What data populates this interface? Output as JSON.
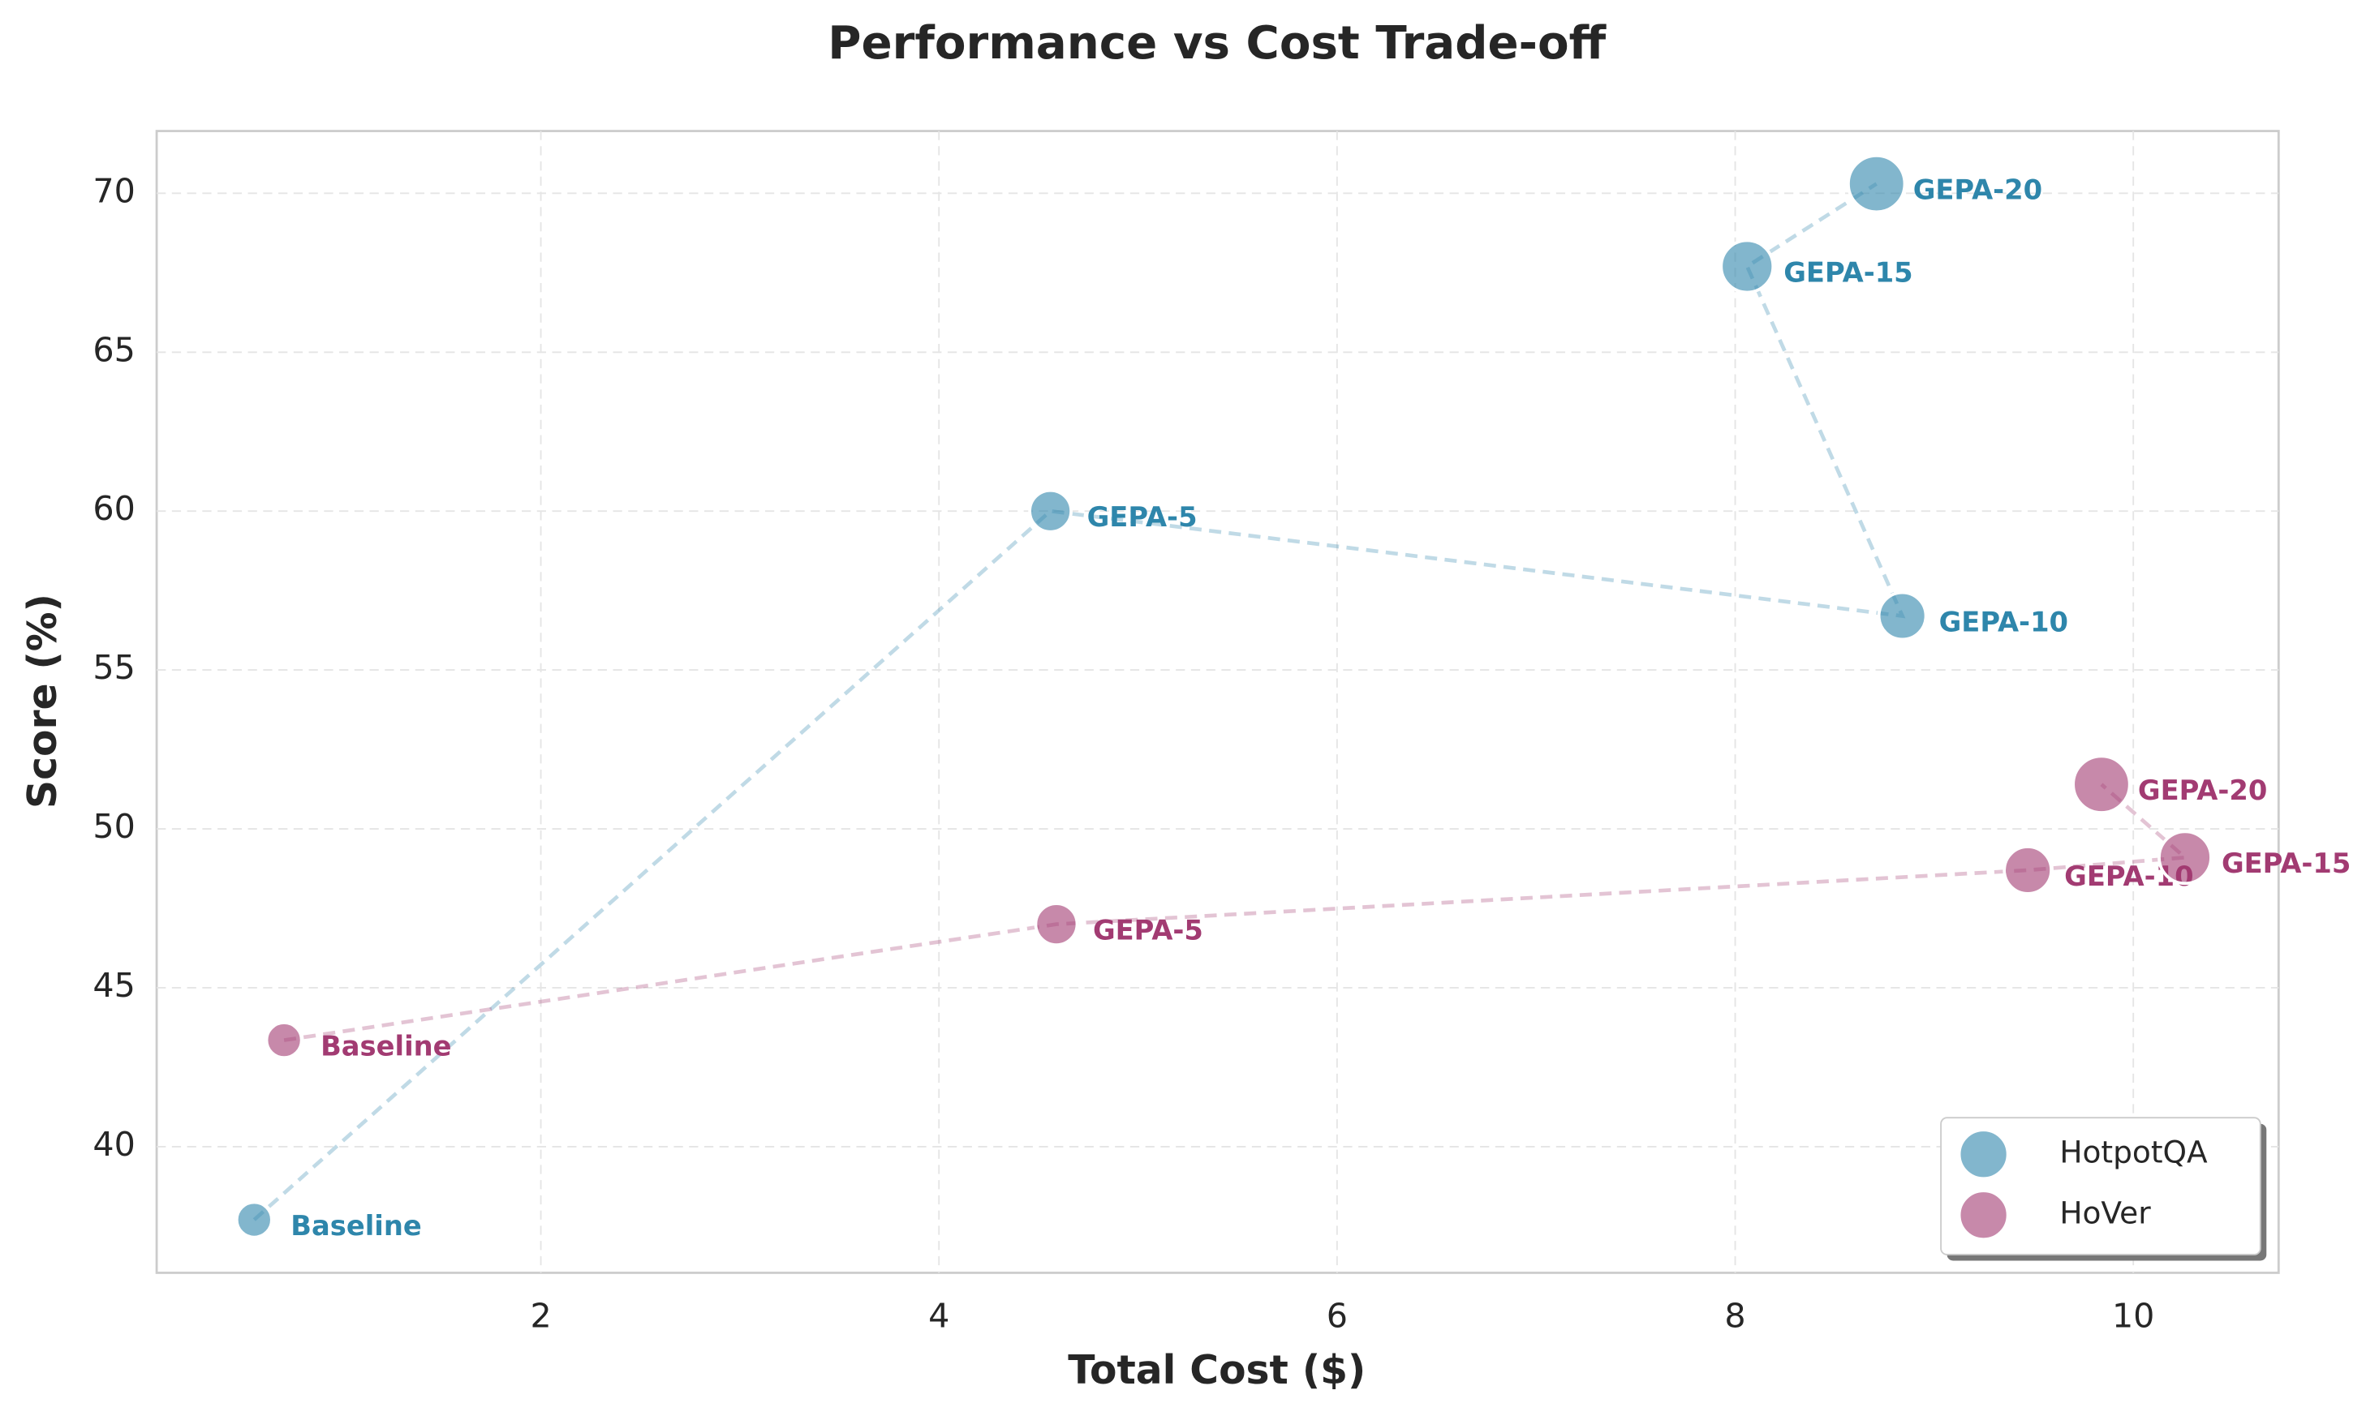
{
  "chart_data": {
    "type": "scatter",
    "title": "Performance vs Cost Trade-off",
    "xlabel": "Total Cost ($)",
    "ylabel": "Score (%)",
    "xlim": [
      0.07,
      10.73
    ],
    "ylim": [
      36.03,
      71.96
    ],
    "xticks": [
      2,
      4,
      6,
      8,
      10
    ],
    "yticks": [
      40,
      45,
      50,
      55,
      60,
      65,
      70
    ],
    "grid": true,
    "legend": "lower right",
    "series": [
      {
        "name": "HotpotQA",
        "color": "#2e86ab",
        "x": [
          0.56,
          4.56,
          8.84,
          8.06,
          8.71
        ],
        "values": [
          37.7,
          60.0,
          56.7,
          67.7,
          70.3
        ],
        "sizes": [
          100,
          140,
          180,
          220,
          260
        ],
        "point_labels": [
          "Baseline",
          "GEPA-5",
          "GEPA-10",
          "GEPA-15",
          "GEPA-20"
        ]
      },
      {
        "name": "HoVer",
        "color": "#a23b72",
        "x": [
          0.71,
          4.59,
          9.47,
          10.26,
          9.84
        ],
        "values": [
          43.35,
          47.0,
          48.7,
          49.1,
          51.4
        ],
        "sizes": [
          100,
          140,
          180,
          220,
          260
        ],
        "point_labels": [
          "Baseline",
          "GEPA-5",
          "GEPA-10",
          "GEPA-15",
          "GEPA-20"
        ]
      }
    ]
  }
}
